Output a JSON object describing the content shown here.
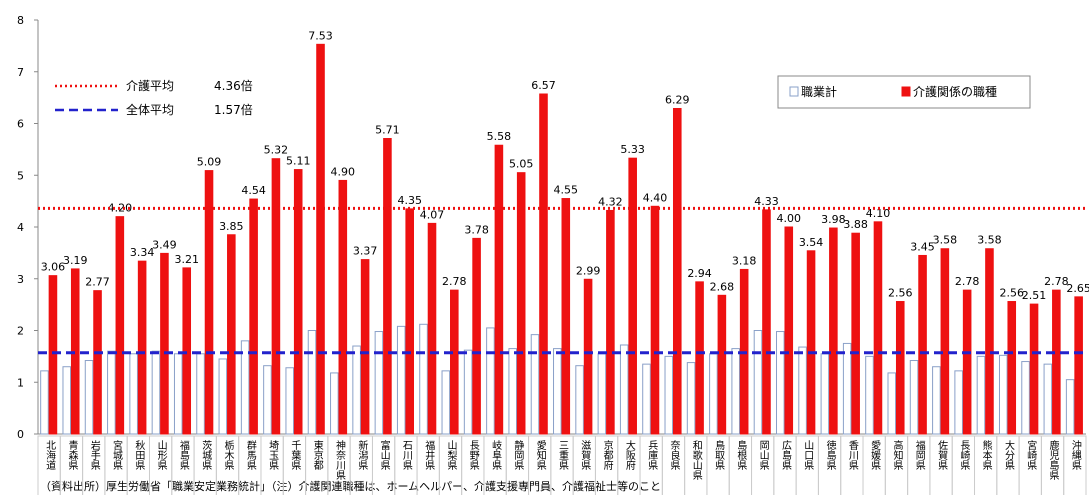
{
  "chart_data": {
    "type": "bar",
    "categories": [
      "北海道",
      "青森県",
      "岩手県",
      "宮城県",
      "秋田県",
      "山形県",
      "福島県",
      "茨城県",
      "栃木県",
      "群馬県",
      "埼玉県",
      "千葉県",
      "東京都",
      "神奈川県",
      "新潟県",
      "富山県",
      "石川県",
      "福井県",
      "山梨県",
      "長野県",
      "岐阜県",
      "静岡県",
      "愛知県",
      "三重県",
      "滋賀県",
      "京都府",
      "大阪府",
      "兵庫県",
      "奈良県",
      "和歌山県",
      "鳥取県",
      "島根県",
      "岡山県",
      "広島県",
      "山口県",
      "徳島県",
      "香川県",
      "愛媛県",
      "高知県",
      "福岡県",
      "佐賀県",
      "長崎県",
      "熊本県",
      "大分県",
      "宮崎県",
      "鹿児島県",
      "沖縄県"
    ],
    "series": [
      {
        "name": "職業計",
        "color": "#ffffff",
        "stroke": "#8aa0c8",
        "values": [
          1.22,
          1.3,
          1.42,
          1.6,
          1.55,
          1.6,
          1.55,
          1.55,
          1.45,
          1.8,
          1.32,
          1.28,
          2.0,
          1.18,
          1.7,
          1.98,
          2.08,
          2.12,
          1.22,
          1.62,
          2.05,
          1.65,
          1.92,
          1.65,
          1.32,
          1.55,
          1.72,
          1.35,
          1.5,
          1.38,
          1.55,
          1.65,
          2.0,
          1.98,
          1.68,
          1.55,
          1.75,
          1.5,
          1.18,
          1.42,
          1.3,
          1.22,
          1.5,
          1.52,
          1.4,
          1.35,
          1.05
        ]
      },
      {
        "name": "介護関係の職種",
        "color": "#ee1111",
        "stroke": "#ee1111",
        "values": [
          3.06,
          3.19,
          2.77,
          4.2,
          3.34,
          3.49,
          3.21,
          5.09,
          3.85,
          4.54,
          5.32,
          5.11,
          7.53,
          4.9,
          3.37,
          5.71,
          4.35,
          4.07,
          2.78,
          3.78,
          5.58,
          5.05,
          6.57,
          4.55,
          2.99,
          4.32,
          5.33,
          4.4,
          6.29,
          2.94,
          2.68,
          3.18,
          4.33,
          4.0,
          3.54,
          3.98,
          3.88,
          4.1,
          2.56,
          3.45,
          3.58,
          2.78,
          3.58,
          2.56,
          2.51,
          2.78,
          2.65
        ],
        "value_labels": [
          "3.06",
          "3.19",
          "2.77",
          "4.20",
          "3.34",
          "3.49",
          "3.21",
          "5.09",
          "3.85",
          "4.54",
          "5.32",
          "5.11",
          "7.53",
          "4.90",
          "3.37",
          "5.71",
          "4.35",
          "4.07",
          "2.78",
          "3.78",
          "5.58",
          "5.05",
          "6.57",
          "4.55",
          "2.99",
          "4.32",
          "5.33",
          "4.40",
          "6.29",
          "2.94",
          "2.68",
          "3.18",
          "4.33",
          "4.00",
          "3.54",
          "3.98",
          "3.88",
          "4.10",
          "2.56",
          "3.45",
          "3.58",
          "2.78",
          "3.58",
          "2.56",
          "2.51",
          "2.78",
          "2.65"
        ]
      }
    ],
    "reference_lines": [
      {
        "name": "介護平均",
        "value": 4.36,
        "value_label": "4.36倍",
        "color": "#ee1111",
        "style": "dotted"
      },
      {
        "name": "全体平均",
        "value": 1.57,
        "value_label": "1.57倍",
        "color": "#2222cc",
        "style": "dashed"
      }
    ],
    "ylim": [
      0,
      8
    ],
    "yticks": [
      0,
      1,
      2,
      3,
      4,
      5,
      6,
      7,
      8
    ],
    "grid": false,
    "legend": "upper right",
    "note": "（資料出所）厚生労働省「職業安定業務統計」（注）介護関連職種は、ホームヘルパー、介護支援専門員、介護福祉士等のこと"
  }
}
